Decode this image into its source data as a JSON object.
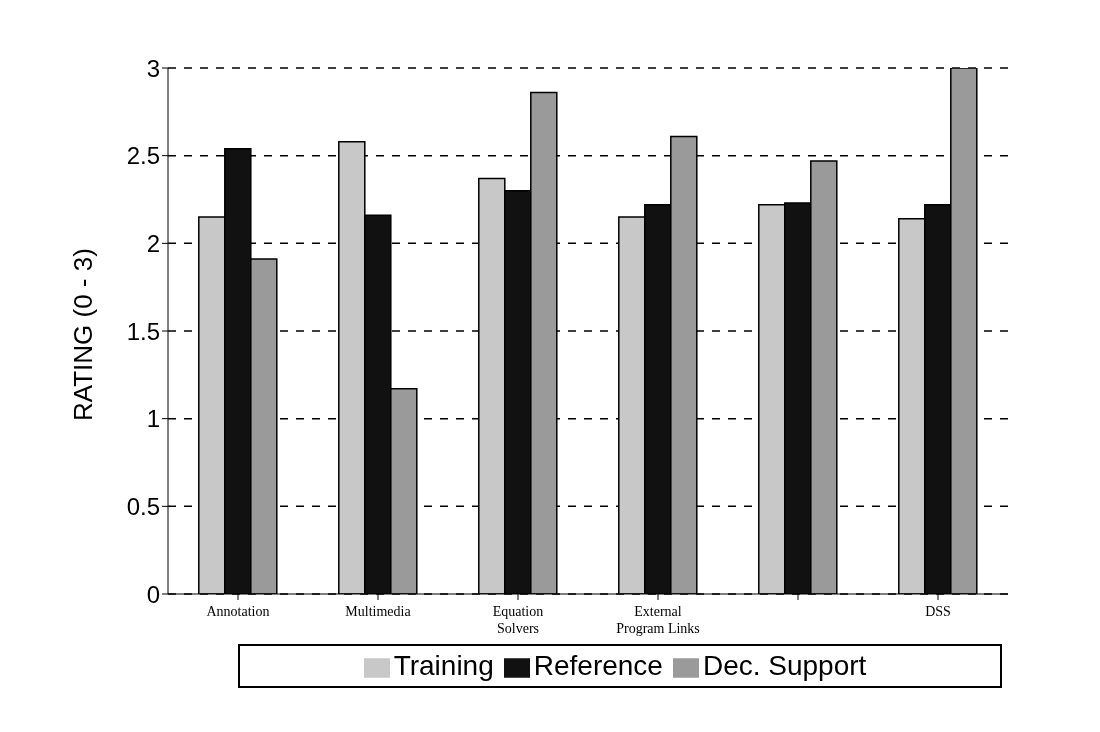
{
  "chart_data": {
    "type": "bar",
    "ylabel": "RATING (0 - 3)",
    "categories": [
      "Annotation",
      "Multimedia",
      "Equation Solvers",
      "External Program Links",
      null,
      "DSS"
    ],
    "series": [
      {
        "name": "Training",
        "color": "#c8c8c8",
        "values": [
          2.15,
          2.58,
          2.37,
          2.15,
          2.22,
          2.14
        ]
      },
      {
        "name": "Reference",
        "color": "#111111",
        "values": [
          2.54,
          2.16,
          2.3,
          2.22,
          2.23,
          2.22
        ]
      },
      {
        "name": "Dec. Support",
        "color": "#9a9a9a",
        "values": [
          1.91,
          1.17,
          2.86,
          2.61,
          2.47,
          3
        ]
      }
    ],
    "ylim": [
      0,
      3
    ],
    "yticks": [
      0,
      0.5,
      1,
      1.5,
      2,
      2.5,
      3
    ],
    "grid": "y",
    "legend": "bottom"
  }
}
